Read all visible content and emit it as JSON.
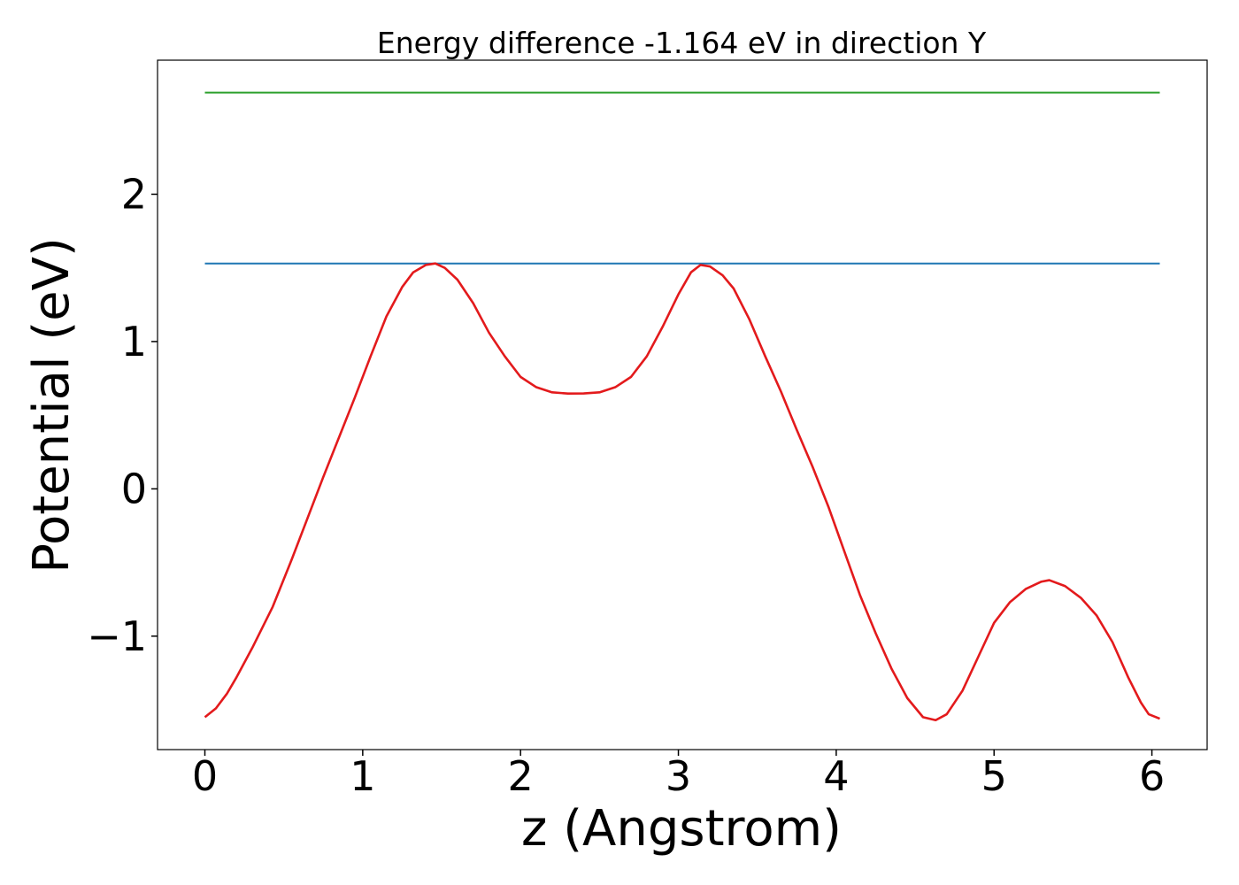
{
  "chart_data": {
    "type": "line",
    "title": "Energy difference -1.164 eV in direction Y",
    "xlabel": "z (Angstrom)",
    "ylabel": "Potential (eV)",
    "xlim": [
      -0.3,
      6.35
    ],
    "ylim": [
      -1.77,
      2.91
    ],
    "xticks": [
      0,
      1,
      2,
      3,
      4,
      5,
      6
    ],
    "xtick_labels": [
      "0",
      "1",
      "2",
      "3",
      "4",
      "5",
      "6"
    ],
    "yticks": [
      -1,
      0,
      1,
      2
    ],
    "ytick_labels": [
      "−1",
      "0",
      "1",
      "2"
    ],
    "grid": false,
    "legend": "none",
    "series": [
      {
        "color": "#1f77b4",
        "x": [
          0,
          6.05
        ],
        "y": [
          1.53,
          1.53
        ]
      },
      {
        "color": "#2ca02c",
        "x": [
          0,
          6.05
        ],
        "y": [
          2.69,
          2.69
        ]
      },
      {
        "color": "#e31a1c",
        "x": [
          0,
          0.07,
          0.14,
          0.2,
          0.3,
          0.43,
          0.55,
          0.65,
          0.75,
          0.85,
          0.95,
          1.05,
          1.15,
          1.25,
          1.32,
          1.4,
          1.46,
          1.52,
          1.6,
          1.7,
          1.8,
          1.9,
          2.0,
          2.1,
          2.2,
          2.3,
          2.4,
          2.5,
          2.6,
          2.7,
          2.8,
          2.9,
          3.0,
          3.08,
          3.14,
          3.2,
          3.28,
          3.35,
          3.45,
          3.55,
          3.65,
          3.75,
          3.85,
          3.95,
          4.05,
          4.15,
          4.25,
          4.35,
          4.45,
          4.55,
          4.63,
          4.7,
          4.8,
          4.9,
          5.0,
          5.1,
          5.2,
          5.3,
          5.35,
          5.45,
          5.55,
          5.65,
          5.75,
          5.85,
          5.93,
          5.98,
          6.05
        ],
        "y": [
          -1.55,
          -1.49,
          -1.39,
          -1.28,
          -1.08,
          -0.8,
          -0.48,
          -0.2,
          0.08,
          0.35,
          0.62,
          0.9,
          1.17,
          1.37,
          1.47,
          1.52,
          1.53,
          1.5,
          1.42,
          1.26,
          1.06,
          0.9,
          0.76,
          0.69,
          0.655,
          0.647,
          0.648,
          0.655,
          0.69,
          0.76,
          0.9,
          1.1,
          1.32,
          1.47,
          1.52,
          1.51,
          1.45,
          1.36,
          1.15,
          0.9,
          0.66,
          0.4,
          0.15,
          -0.12,
          -0.42,
          -0.72,
          -0.98,
          -1.22,
          -1.42,
          -1.55,
          -1.57,
          -1.53,
          -1.37,
          -1.14,
          -0.91,
          -0.77,
          -0.68,
          -0.63,
          -0.62,
          -0.66,
          -0.74,
          -0.86,
          -1.04,
          -1.28,
          -1.45,
          -1.53,
          -1.56
        ]
      }
    ]
  }
}
